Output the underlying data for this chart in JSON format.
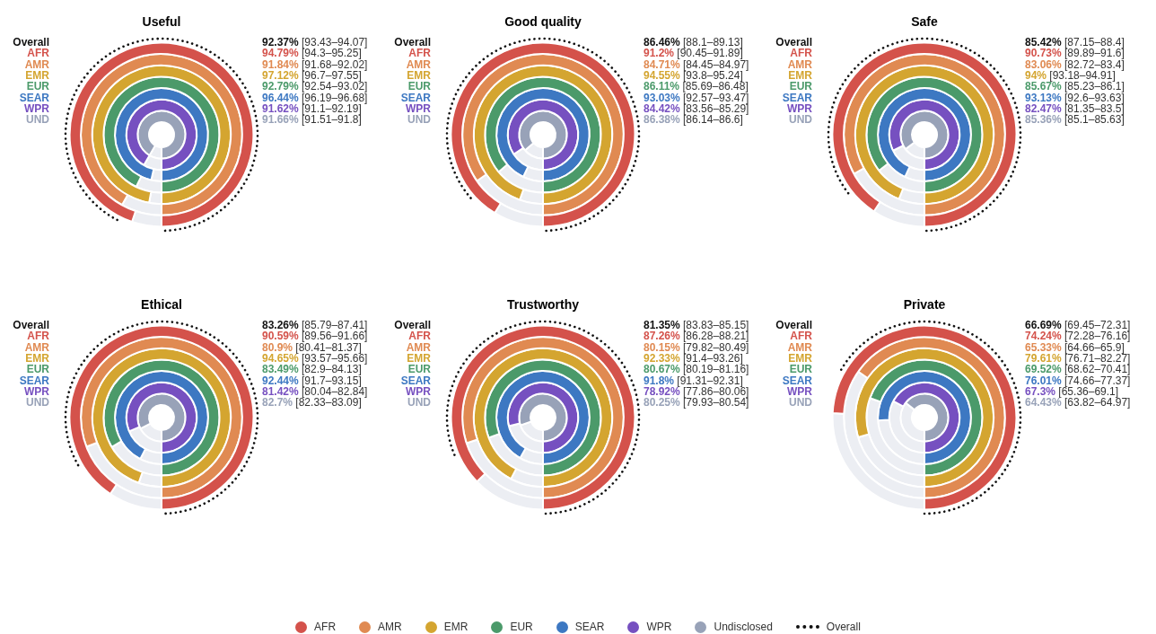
{
  "chart_data": {
    "type": "other",
    "categories": [
      "Useful",
      "Good quality",
      "Safe",
      "Ethical",
      "Trustworthy",
      "Private"
    ],
    "series": [
      {
        "name": "AFR",
        "color": "#d4524b",
        "values": [
          94.79,
          91.2,
          90.73,
          90.59,
          87.26,
          74.24
        ],
        "value_labels": [
          "94.79% [94.3–95.25]",
          "91.2% [90.45–91.89]",
          "90.73% [89.89–91.6]",
          "90.59% [89.56–91.66]",
          "87.26% [86.28–88.21]",
          "74.24% [72.28–76.16]"
        ]
      },
      {
        "name": "AMR",
        "color": "#e08a52",
        "values": [
          91.84,
          84.71,
          83.06,
          80.9,
          80.15,
          65.33
        ],
        "value_labels": [
          "91.84% [91.68–92.02]",
          "84.71% [84.45–84.97]",
          "83.06% [82.72–83.4]",
          "80.9% [80.41–81.37]",
          "80.15% [79.82–80.49]",
          "65.33% [64.66–65.9]"
        ]
      },
      {
        "name": "EMR",
        "color": "#d4a530",
        "values": [
          97.12,
          94.55,
          94,
          94.65,
          92.33,
          79.61
        ],
        "value_labels": [
          "97.12% [96.7–97.55]",
          "94.55% [93.8–95.24]",
          "94% [93.18–94.91]",
          "94.65% [93.57–95.66]",
          "92.33% [91.4–93.26]",
          "79.61% [76.71–82.27]"
        ]
      },
      {
        "name": "EUR",
        "color": "#4b9a6a",
        "values": [
          92.79,
          86.11,
          85.67,
          83.49,
          80.67,
          69.52
        ],
        "value_labels": [
          "92.79% [92.54–93.02]",
          "86.11% [85.69–86.48]",
          "85.67% [85.23–86.1]",
          "83.49% [82.9–84.13]",
          "80.67% [80.19–81.16]",
          "69.52% [68.62–70.41]"
        ]
      },
      {
        "name": "SEAR",
        "color": "#3d78c2",
        "values": [
          96.44,
          93.03,
          93.13,
          92.44,
          91.8,
          76.01
        ],
        "value_labels": [
          "96.44% [96.19–96.68]",
          "93.03% [92.57–93.47]",
          "93.13% [92.6–93.63]",
          "92.44% [91.7–93.15]",
          "91.8% [91.31–92.31]",
          "76.01% [74.66–77.37]"
        ]
      },
      {
        "name": "WPR",
        "color": "#7650c0",
        "values": [
          91.62,
          84.42,
          82.47,
          81.42,
          78.92,
          67.3
        ],
        "value_labels": [
          "91.62% [91.1–92.19]",
          "84.42% [83.56–85.29]",
          "82.47% [81.35–83.5]",
          "81.42% [80.04–82.84]",
          "78.92% [77.86–80.06]",
          "67.3% [65.36–69.1]"
        ]
      },
      {
        "name": "Undisclosed",
        "color": "#98a2b8",
        "values": [
          91.66,
          86.38,
          85.36,
          82.7,
          80.25,
          64.43
        ],
        "value_labels": [
          "91.66% [91.51–91.8]",
          "86.38% [86.14–86.6]",
          "85.36% [85.1–85.63]",
          "82.7% [82.33–83.09]",
          "80.25% [79.93–80.54]",
          "64.43% [63.82–64.97]"
        ]
      },
      {
        "name": "Overall",
        "color": "#111111",
        "line_style": "dotted",
        "values": [
          92.37,
          86.46,
          85.42,
          83.26,
          81.35,
          66.69
        ],
        "value_labels": [
          "92.37% [93.43–94.07]",
          "86.46% [88.1–89.13]",
          "85.42% [87.15–88.4]",
          "83.26% [85.79–87.41]",
          "81.35% [83.83–85.15]",
          "66.69% [69.45–72.31]"
        ]
      }
    ],
    "annotations": [
      "Overall",
      "AFR",
      "AMR",
      "EMR",
      "EUR",
      "SEAR",
      "WPR",
      "UND"
    ],
    "legend": "bottom"
  }
}
